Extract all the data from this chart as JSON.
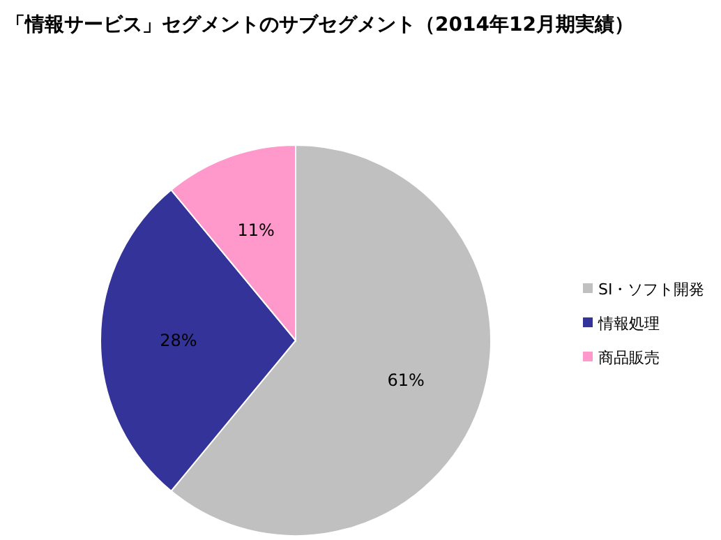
{
  "chart_data": {
    "type": "pie",
    "title": "「情報サービス」セグメントのサブセグメント（2014年12月期実績）",
    "categories": [
      "SI・ソフト開発",
      "情報処理",
      "商品販売"
    ],
    "values": [
      61,
      28,
      11
    ],
    "colors": [
      "#c0c0c0",
      "#333399",
      "#ff99cc"
    ],
    "value_labels": [
      "61%",
      "28%",
      "11%"
    ],
    "legend": "right"
  }
}
